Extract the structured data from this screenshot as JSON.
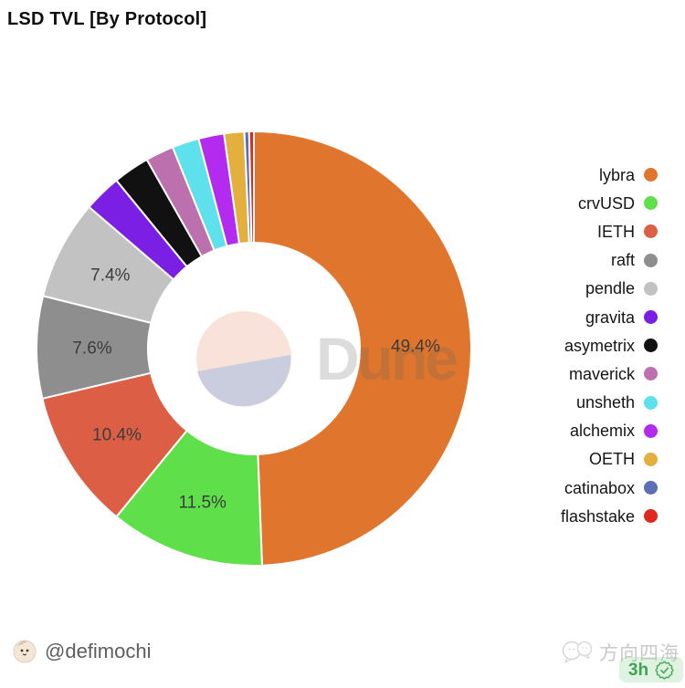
{
  "header": {
    "title": "LSD TVL [By Protocol]"
  },
  "watermark": {
    "text": "Dune",
    "logo_top_color": "#F8E2D9",
    "logo_bottom_color": "#CACDDE"
  },
  "chart_data": {
    "type": "pie",
    "title": "LSD TVL [By Protocol]",
    "donut": true,
    "units": "percent",
    "start_angle_deg": 0,
    "direction": "clockwise",
    "legend_position": "right",
    "slices": [
      {
        "name": "lybra",
        "pct": 49.4,
        "color": "#E0762D",
        "label": "49.4%",
        "show_label": true
      },
      {
        "name": "crvUSD",
        "pct": 11.5,
        "color": "#5FE04B",
        "label": "11.5%",
        "show_label": true
      },
      {
        "name": "IETH",
        "pct": 10.4,
        "color": "#DC5F45",
        "label": "10.4%",
        "show_label": true
      },
      {
        "name": "raft",
        "pct": 7.6,
        "color": "#8E8E8E",
        "label": "7.6%",
        "show_label": true
      },
      {
        "name": "pendle",
        "pct": 7.4,
        "color": "#C2C2C2",
        "label": "7.4%",
        "show_label": true
      },
      {
        "name": "gravita",
        "pct": 2.8,
        "color": "#7B1FE4",
        "label": "",
        "show_label": false
      },
      {
        "name": "asymetrix",
        "pct": 2.7,
        "color": "#111111",
        "label": "",
        "show_label": false
      },
      {
        "name": "maverick",
        "pct": 2.1,
        "color": "#BC70AE",
        "label": "",
        "show_label": false
      },
      {
        "name": "unsheth",
        "pct": 2.0,
        "color": "#5FE0ED",
        "label": "",
        "show_label": false
      },
      {
        "name": "alchemix",
        "pct": 1.9,
        "color": "#B32BEF",
        "label": "",
        "show_label": false
      },
      {
        "name": "OETH",
        "pct": 1.5,
        "color": "#E3AF3D",
        "label": "",
        "show_label": false
      },
      {
        "name": "catinabox",
        "pct": 0.35,
        "color": "#5B6FB5",
        "label": "",
        "show_label": false
      },
      {
        "name": "flashstake",
        "pct": 0.35,
        "color": "#E0281E",
        "label": "",
        "show_label": false
      }
    ]
  },
  "footer": {
    "author_handle": "@defimochi",
    "channel_name": "方向四海",
    "badge_text": "3h"
  }
}
